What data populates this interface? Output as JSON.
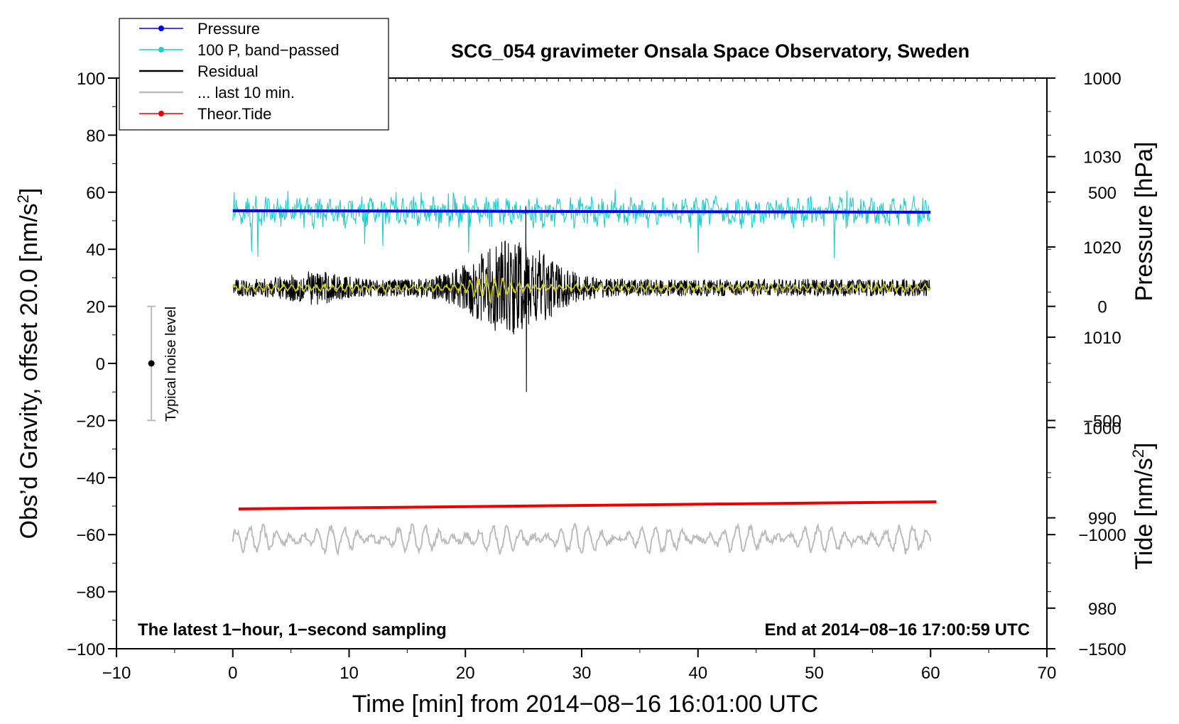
{
  "chart_data": {
    "type": "line",
    "title": "SCG_054 gravimeter Onsala Space Observatory, Sweden",
    "xlabel": "Time [min] from 2014−08−16 16:01:00 UTC",
    "ylabel_left_main": "Obs’d Gravity, offset 20.0 [nm/s",
    "ylabel_left_sup": "2",
    "ylabel_left_close": "]",
    "ylabel_right_pressure": "Pressure [hPa]",
    "ylabel_right_tide_main": "Tide [nm/s",
    "ylabel_right_tide_sup": "2",
    "ylabel_right_tide_close": "]",
    "note_left": "The latest 1−hour, 1−second sampling",
    "note_right": "End at 2014−08−16 17:00:59 UTC",
    "noise_label": "Typical noise level",
    "noise_bar": {
      "x": -7,
      "center": 0,
      "low": -20,
      "high": 20
    },
    "xlim": [
      -10,
      70
    ],
    "ylim": [
      -100,
      100
    ],
    "pressure_lim": [
      975.5,
      1038.7
    ],
    "tide_lim": [
      -1500,
      1000
    ],
    "x_ticks": [
      -10,
      0,
      10,
      20,
      30,
      40,
      50,
      60,
      70
    ],
    "x_tick_labels": [
      "−10",
      "0",
      "10",
      "20",
      "30",
      "40",
      "50",
      "60",
      "70"
    ],
    "y_ticks": [
      100,
      80,
      60,
      40,
      20,
      0,
      -20,
      -40,
      -60,
      -80,
      -100
    ],
    "y_tick_labels": [
      "100",
      "80",
      "60",
      "40",
      "20",
      "0",
      "−20",
      "−40",
      "−60",
      "−80",
      "−100"
    ],
    "pressure_ticks": [
      1030,
      1020,
      1010,
      1000,
      990,
      980
    ],
    "pressure_tick_labels": [
      "1030",
      "1020",
      "1010",
      "1000",
      "990",
      "980"
    ],
    "tide_ticks": [
      1000,
      500,
      0,
      -500,
      -1000,
      -1500
    ],
    "tide_tick_labels": [
      "1000",
      "500",
      "0",
      "−500",
      "−1000",
      "−1500"
    ],
    "legend": [
      {
        "label": "Pressure",
        "color": "#0000ee",
        "marker": true
      },
      {
        "label": "100 P, band−passed",
        "color": "#22cccc",
        "marker": true
      },
      {
        "label": "Residual",
        "color": "#000000",
        "marker": false
      },
      {
        "label": "... last 10 min.",
        "color": "#bbbbbb",
        "marker": false
      },
      {
        "label": "Theor.Tide",
        "color": "#ee0000",
        "marker": true
      }
    ],
    "series": [
      {
        "name": "Pressure",
        "color": "#0000ee",
        "x_range": [
          0,
          60
        ],
        "y_start": 53.5,
        "y_end": 53.0
      },
      {
        "name": "100 P, band−passed",
        "color": "#22cccc",
        "x_range": [
          0,
          60
        ],
        "baseline": 53,
        "amplitude": 4
      },
      {
        "name": "Residual",
        "color": "#000000",
        "x_range": [
          0,
          60
        ],
        "baseline": 26.5,
        "amplitude": 3,
        "event_peak_min": 24,
        "event_max": 55,
        "event_min": -10
      },
      {
        "name": "Residual smoothed",
        "color": "#cccc22",
        "x_range": [
          0,
          60
        ],
        "baseline": 26.5,
        "amplitude": 1.5
      },
      {
        "name": "Theor.Tide",
        "color": "#ee0000",
        "x_range": [
          0.5,
          60.5
        ],
        "y_start": -51.0,
        "y_end": -48.5
      },
      {
        "name": "... last 10 min.",
        "color": "#bbbbbb",
        "x_range": [
          0,
          60
        ],
        "baseline": -61.5,
        "amplitude": 4.5
      }
    ]
  }
}
